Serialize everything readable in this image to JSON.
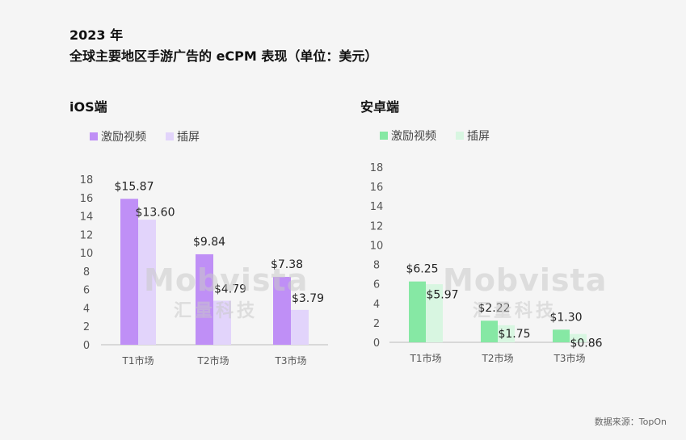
{
  "title": {
    "line1": "2023 年",
    "line2": "全球主要地区手游广告的 eCPM 表现（单位：美元）"
  },
  "watermark": {
    "en": "Mobvista",
    "cn": "汇量科技"
  },
  "source": "数据来源：TopOn",
  "chart_data": [
    {
      "type": "bar",
      "title": "iOS端",
      "categories": [
        "T1市场",
        "T2市场",
        "T3市场"
      ],
      "series": [
        {
          "name": "激励视频",
          "values": [
            15.87,
            9.84,
            7.38
          ],
          "labels": [
            "$15.87",
            "$9.84",
            "$7.38"
          ],
          "color": "#bf8ff6"
        },
        {
          "name": "插屏",
          "values": [
            13.6,
            4.79,
            3.79
          ],
          "labels": [
            "$13.60",
            "$4.79",
            "$3.79"
          ],
          "color": "#e2d4fb"
        }
      ],
      "ylim": [
        0,
        18
      ],
      "yticks": [
        "0",
        "2",
        "4",
        "6",
        "8",
        "10",
        "12",
        "14",
        "16",
        "18"
      ],
      "grid": false,
      "legend": "top-left"
    },
    {
      "type": "bar",
      "title": "安卓端",
      "categories": [
        "T1市场",
        "T2市场",
        "T3市场"
      ],
      "series": [
        {
          "name": "激励视频",
          "values": [
            6.25,
            2.22,
            1.3
          ],
          "labels": [
            "$6.25",
            "$2.22",
            "$1.30"
          ],
          "color": "#86e8a4"
        },
        {
          "name": "插屏",
          "values": [
            5.97,
            1.75,
            0.86
          ],
          "labels": [
            "$5.97",
            "$1.75",
            "$0.86"
          ],
          "color": "#d8f6e1"
        }
      ],
      "ylim": [
        0,
        18
      ],
      "yticks": [
        "0",
        "2",
        "4",
        "6",
        "8",
        "10",
        "12",
        "14",
        "16",
        "18"
      ],
      "grid": false,
      "legend": "top-left"
    }
  ]
}
